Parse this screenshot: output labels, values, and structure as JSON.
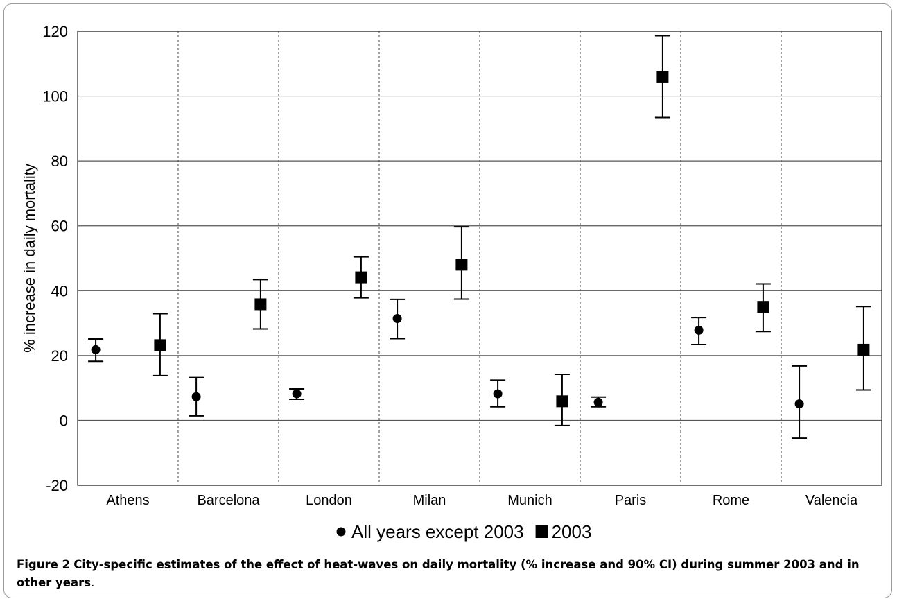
{
  "chart_data": {
    "type": "scatter",
    "subtype": "point-estimates-with-error-bars",
    "categories": [
      "Athens",
      "Barcelona",
      "London",
      "Milan",
      "Munich",
      "Paris",
      "Rome",
      "Valencia"
    ],
    "ylabel": "% increase in daily mortality",
    "xlabel": "",
    "ylim": [
      -20,
      120
    ],
    "yticks": [
      -20,
      0,
      20,
      40,
      60,
      80,
      100,
      120
    ],
    "yticks_text": [
      "-20",
      "0",
      "20",
      "40",
      "60",
      "80",
      "100",
      "120"
    ],
    "grid": {
      "horizontal": true,
      "vertical_separators": "dashed"
    },
    "legend_position": "bottom",
    "series": [
      {
        "name": "All years except 2003",
        "marker": "circle",
        "color": "#000000",
        "values": [
          21.8,
          7.3,
          8.2,
          31.4,
          8.2,
          5.6,
          27.8,
          5.1
        ],
        "lower": [
          18.2,
          1.4,
          6.5,
          25.2,
          4.2,
          4.2,
          23.4,
          -5.5
        ],
        "upper": [
          25.1,
          13.2,
          9.7,
          37.3,
          12.4,
          7.2,
          31.7,
          16.8
        ]
      },
      {
        "name": "2003",
        "marker": "square",
        "color": "#000000",
        "values": [
          23.2,
          35.8,
          44.1,
          48.0,
          5.9,
          105.8,
          35.0,
          21.8
        ],
        "lower": [
          13.8,
          28.2,
          37.8,
          37.4,
          -1.6,
          93.4,
          27.4,
          9.4
        ],
        "upper": [
          32.9,
          43.4,
          50.4,
          59.7,
          14.2,
          118.6,
          42.1,
          35.1
        ]
      }
    ]
  },
  "caption": {
    "label": "Figure 2",
    "text": "City-specific estimates of the effect of heat-waves on daily mortality (% increase and 90% CI) during summer 2003 and in other years",
    "trailing": "."
  }
}
